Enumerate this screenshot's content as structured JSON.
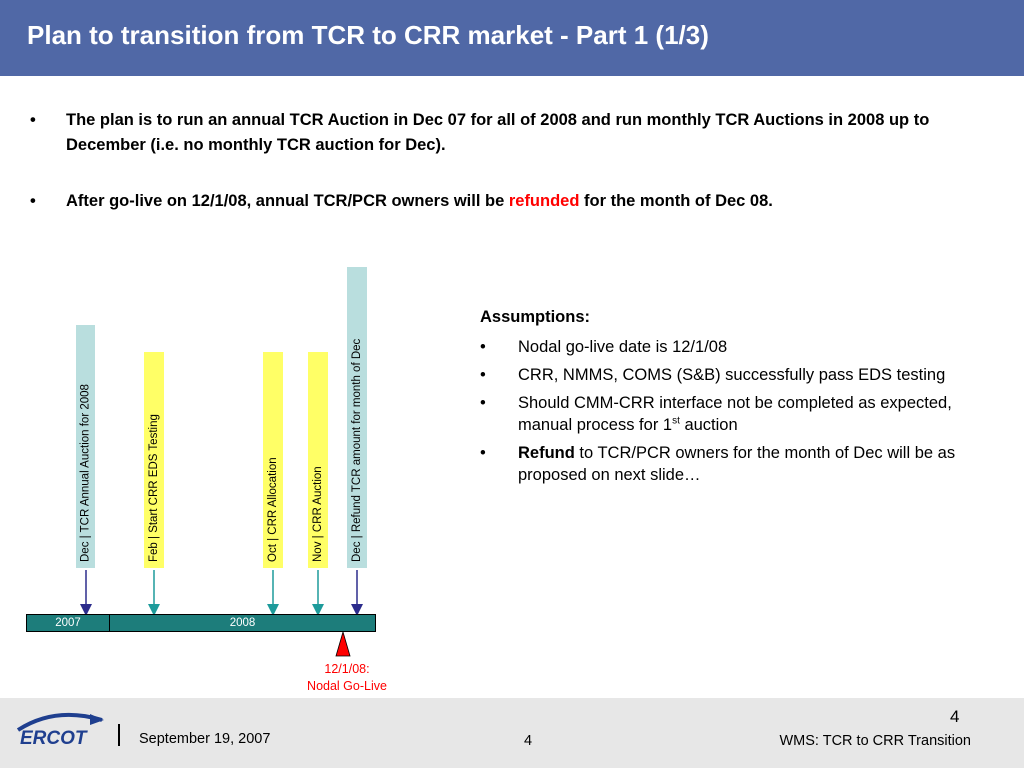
{
  "slide": {
    "title": "Plan to transition from TCR to CRR market - Part 1 (1/3)"
  },
  "bullets": {
    "b1": "The plan is to run an annual TCR Auction in Dec 07 for all of 2008 and run monthly TCR Auctions in 2008 up to December (i.e. no monthly TCR auction for Dec).",
    "b2_pre": "After go-live on 12/1/08, annual TCR/PCR owners will be ",
    "b2_red": "refunded",
    "b2_post": " for the month of Dec 08."
  },
  "timeline": {
    "milestones": [
      "Dec  | TCR Annual Auction for 2008",
      "Feb  |  Start CRR EDS Testing",
      "Oct  |  CRR Allocation",
      "Nov |  CRR Auction",
      "Dec  |  Refund TCR amount for month of Dec"
    ],
    "year_2007": "2007",
    "year_2008": "2008",
    "golive_line1": "12/1/08:",
    "golive_line2": "Nodal Go-Live"
  },
  "assumptions": {
    "title": "Assumptions:",
    "item1": "Nodal go-live date is 12/1/08",
    "item2": "CRR, NMMS, COMS (S&B) successfully pass EDS testing",
    "item3_pre": "Should CMM-CRR interface not be completed  as expected, manual process for 1",
    "item3_sup": "st",
    "item3_post": " auction",
    "item4_bold": "Refund",
    "item4_rest": " to TCR/PCR owners for the month of Dec will be as proposed on next slide…"
  },
  "footer": {
    "logo_text": "ERCOT",
    "date": "September 19, 2007",
    "page_top": "4",
    "page_mid": "4",
    "right_text": "WMS: TCR to CRR Transition"
  },
  "colors": {
    "title_bar": "#5068a6",
    "timeline_bar": "#1d7d7b",
    "teal_label": "#b9dede",
    "yellow_label": "#ffff66",
    "accent_red": "#ff0000"
  }
}
